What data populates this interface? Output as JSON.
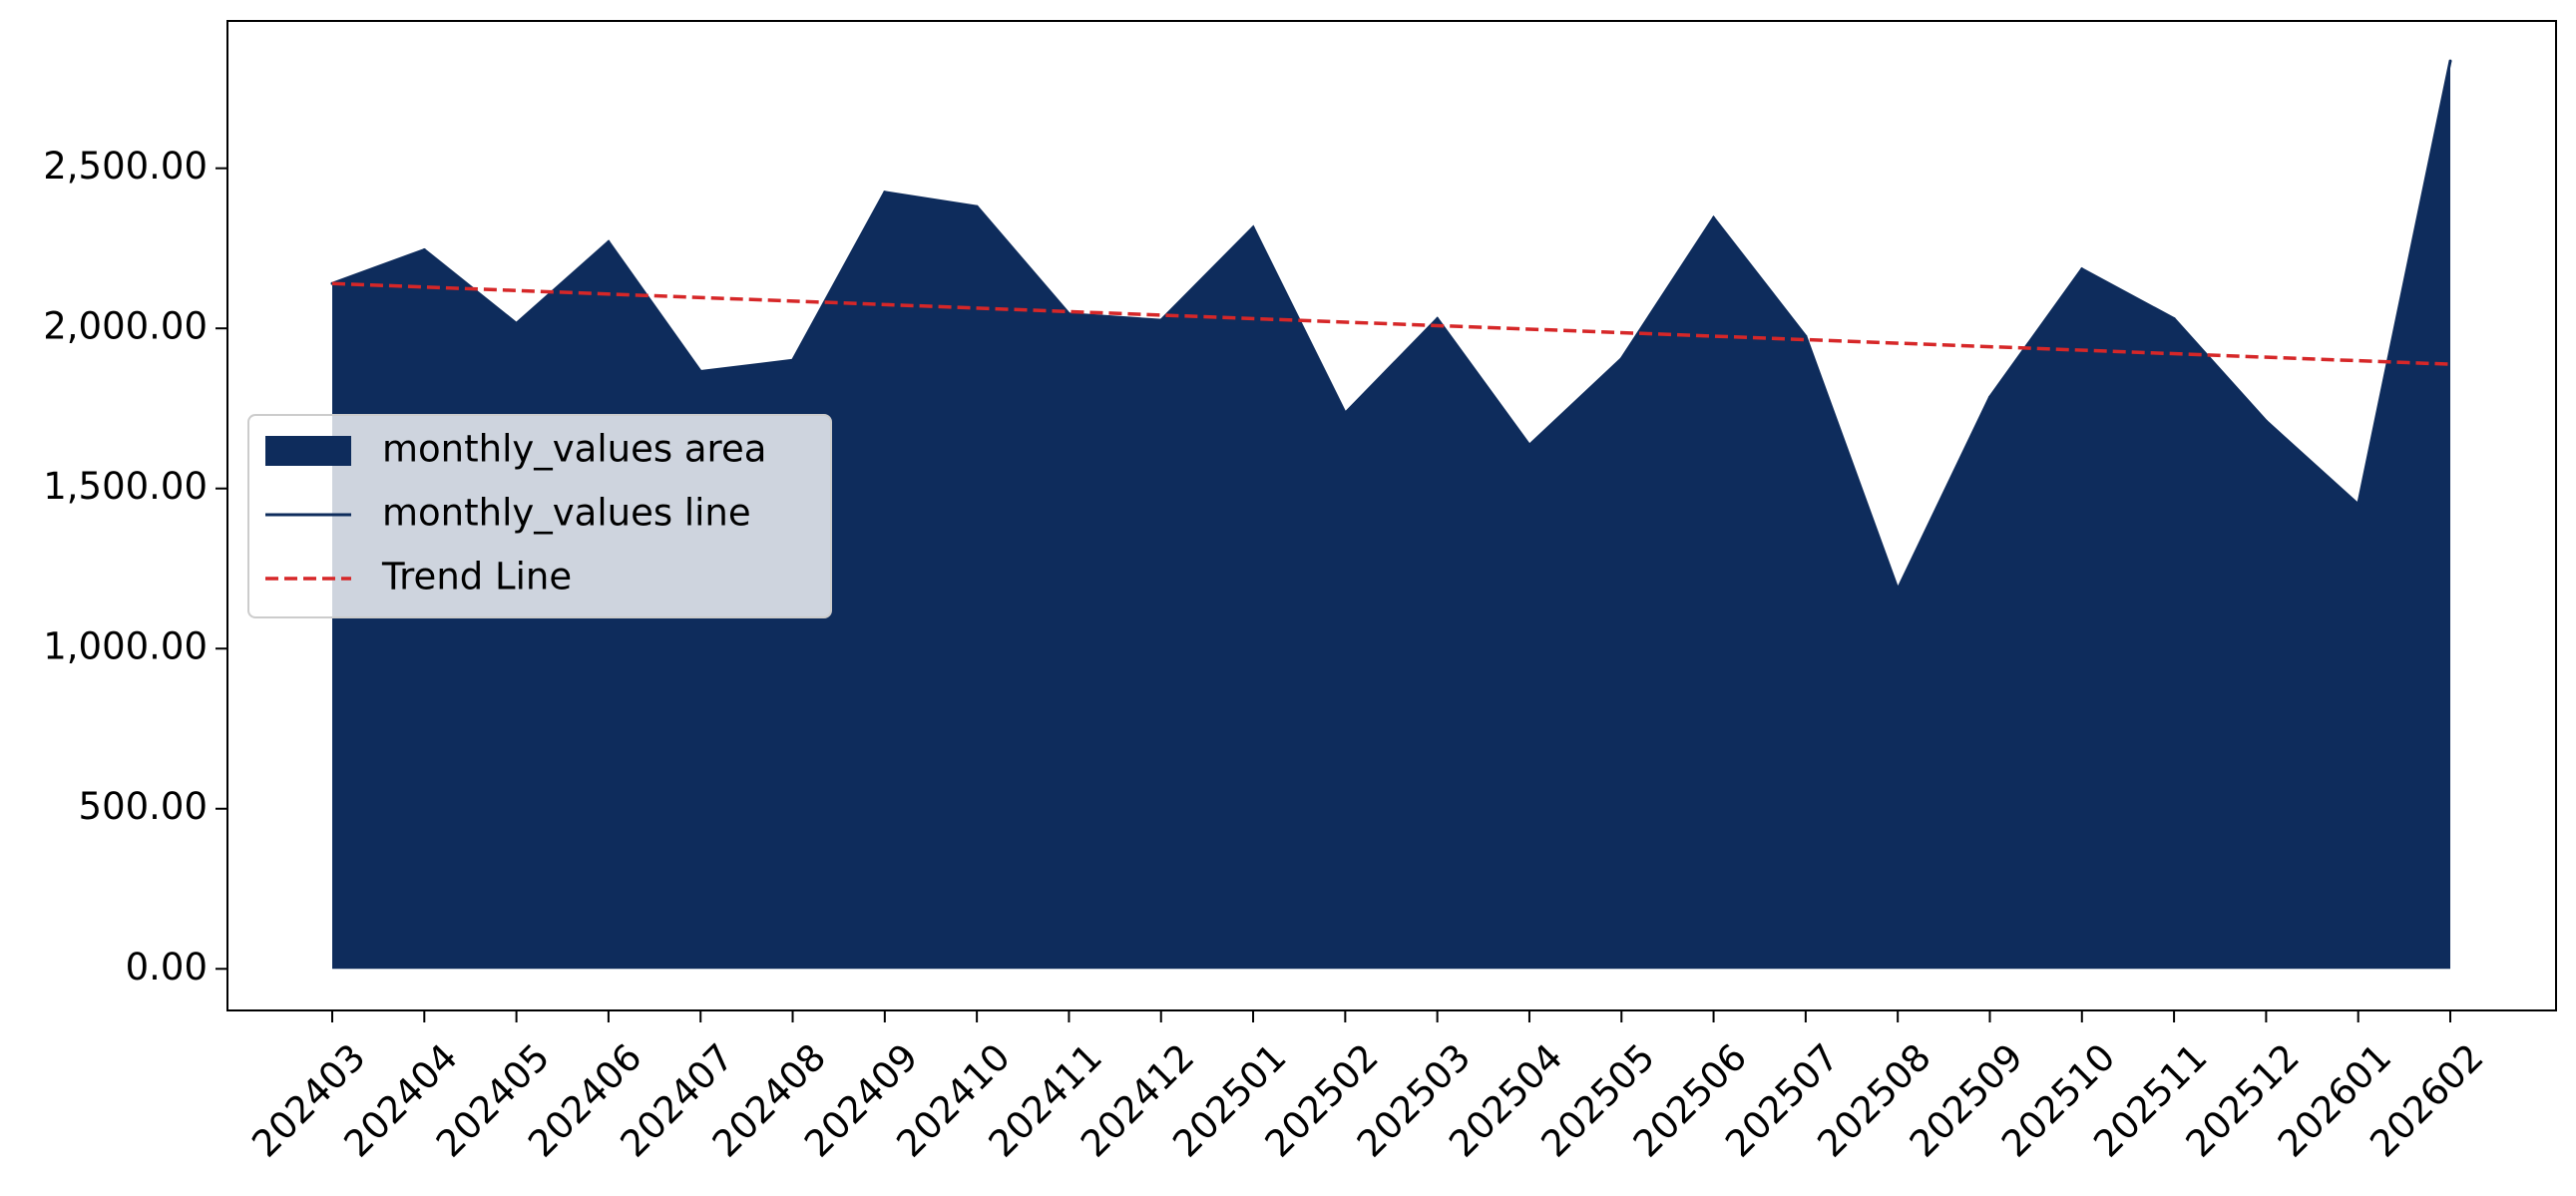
{
  "chart_data": {
    "type": "area",
    "title": "",
    "xlabel": "",
    "ylabel": "",
    "categories": [
      "202403",
      "202404",
      "202405",
      "202406",
      "202407",
      "202408",
      "202409",
      "202410",
      "202411",
      "202412",
      "202501",
      "202502",
      "202503",
      "202504",
      "202505",
      "202506",
      "202507",
      "202508",
      "202509",
      "202510",
      "202511",
      "202512",
      "202601",
      "202602"
    ],
    "series": [
      {
        "name": "monthly_values area",
        "kind": "area",
        "color": "#0e2c5c",
        "values": [
          2140,
          2245,
          2015,
          2270,
          1865,
          1900,
          2425,
          2380,
          2045,
          2025,
          2315,
          1735,
          2030,
          1635,
          1905,
          2345,
          1975,
          1185,
          1785,
          2185,
          2030,
          1710,
          1450,
          2835
        ]
      },
      {
        "name": "monthly_values line",
        "kind": "line",
        "color": "#0e2c5c",
        "values": [
          2140,
          2245,
          2015,
          2270,
          1865,
          1900,
          2425,
          2380,
          2045,
          2025,
          2315,
          1735,
          2030,
          1635,
          1905,
          2345,
          1975,
          1185,
          1785,
          2185,
          2030,
          1710,
          1450,
          2835
        ]
      },
      {
        "name": "Trend Line",
        "kind": "trend",
        "color": "#d62728",
        "style": "dashed",
        "start": 2140,
        "end": 1888
      }
    ],
    "ylim": [
      -130,
      2960
    ],
    "yticks": [
      0,
      500,
      1000,
      1500,
      2000,
      2500
    ],
    "ytick_labels": [
      "0.00",
      "500.00",
      "1,000.00",
      "1,500.00",
      "2,000.00",
      "2,500.00"
    ],
    "grid": false,
    "legend_position": "center-left"
  }
}
